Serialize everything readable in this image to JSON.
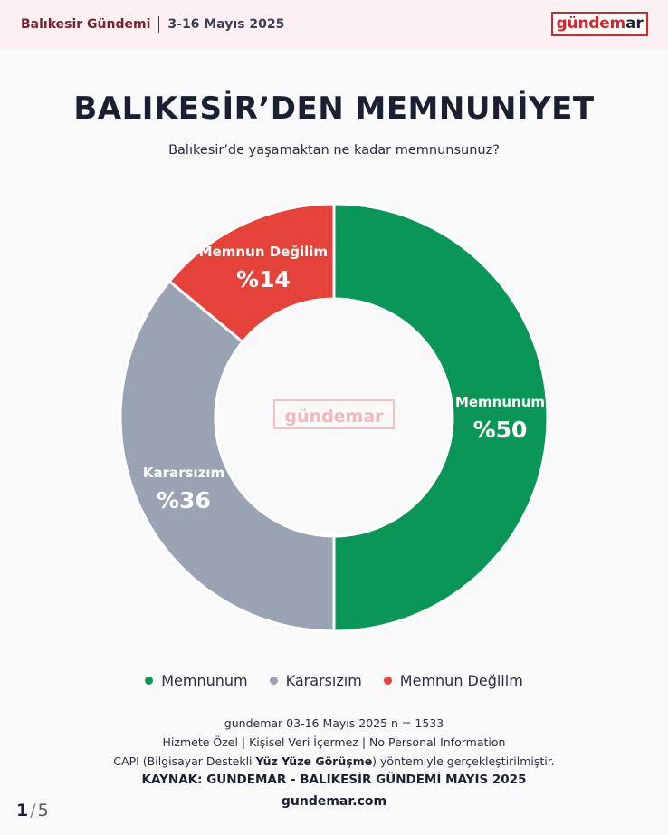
{
  "header": {
    "region": "Balıkesir Gündemi",
    "date_range": "3-16 Mayıs 2025",
    "brand_main": "gündem",
    "brand_hl": "ar"
  },
  "title": "BALIKESİR’DEN MEMNUNİYET",
  "subtitle": "Balıkesir’de yaşamaktan ne kadar memnunsunuz?",
  "chart_data": {
    "type": "pie",
    "donut": true,
    "center_watermark": "gündemar",
    "slices": [
      {
        "label": "Memnunum",
        "value": 50,
        "value_label": "%50",
        "color": "#0a9656"
      },
      {
        "label": "Kararsızım",
        "value": 36,
        "value_label": "%36",
        "color": "#9aa3b3"
      },
      {
        "label": "Memnun Değilim",
        "value": 14,
        "value_label": "%14",
        "color": "#e5433a"
      }
    ],
    "legend": [
      "Memnunum",
      "Kararsızım",
      "Memnun Değilim"
    ],
    "legend_position": "bottom"
  },
  "footer": {
    "line1": "gundemar 03-16 Mayıs 2025 n = 1533",
    "line2": "Hizmete Özel | Kişisel Veri İçermez | No Personal Information",
    "line3_pre": "CAPI (Bilgisayar Destekli ",
    "line3_bold": "Yüz Yüze Görüşme",
    "line3_post": ") yöntemiyle gerçekleştirilmiştir.",
    "source": "KAYNAK: GUNDEMAR - BALIKESİR GÜNDEMİ MAYIS 2025",
    "site": "gundemar.com"
  },
  "pager": {
    "current": "1",
    "total": "5"
  }
}
